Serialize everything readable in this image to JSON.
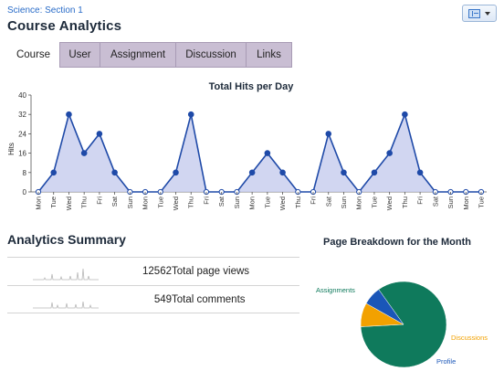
{
  "breadcrumb": "Science: Section 1",
  "page_title": "Course Analytics",
  "tabs": [
    {
      "label": "Course",
      "active": true
    },
    {
      "label": "User",
      "active": false
    },
    {
      "label": "Assignment",
      "active": false
    },
    {
      "label": "Discussion",
      "active": false
    },
    {
      "label": "Links",
      "active": false
    }
  ],
  "colors": {
    "accent": "#2a6cc8",
    "line": "#1f4aa8",
    "area": "#c9cfef",
    "tab_bg": "#c9bed3",
    "pie_assignments": "#0f7a5c",
    "pie_discussions": "#f2a100",
    "pie_profile": "#1a56b8"
  },
  "chart_data": [
    {
      "type": "area",
      "title": "Total Hits per Day",
      "ylabel": "Hits",
      "xlabel": "",
      "ylim": [
        0,
        40
      ],
      "yticks": [
        0,
        8,
        16,
        24,
        32,
        40
      ],
      "grid": false,
      "categories": [
        "Mon",
        "Tue",
        "Wed",
        "Thu",
        "Fri",
        "Sat",
        "Sun",
        "Mon",
        "Tue",
        "Wed",
        "Thu",
        "Fri",
        "Sat",
        "Sun",
        "Mon",
        "Tue",
        "Wed",
        "Thu",
        "Fri",
        "Sat",
        "Sun",
        "Mon",
        "Tue",
        "Wed",
        "Thu",
        "Fri",
        "Sat",
        "Sun",
        "Mon",
        "Tue"
      ],
      "values": [
        0,
        8,
        32,
        16,
        24,
        8,
        0,
        0,
        0,
        8,
        32,
        0,
        0,
        0,
        8,
        16,
        8,
        0,
        0,
        24,
        8,
        0,
        8,
        16,
        32,
        8,
        0,
        0,
        0,
        0
      ]
    },
    {
      "type": "pie",
      "title": "Page Breakdown for the Month",
      "legend": "labels-outside",
      "slices": [
        {
          "label": "Assignments",
          "value": 84
        },
        {
          "label": "Discussions",
          "value": 9
        },
        {
          "label": "Profile",
          "value": 7
        }
      ]
    }
  ],
  "summary": {
    "title": "Analytics Summary",
    "rows": [
      {
        "value": "12562",
        "label": "Total page views"
      },
      {
        "value": "549",
        "label": "Total comments"
      }
    ]
  }
}
